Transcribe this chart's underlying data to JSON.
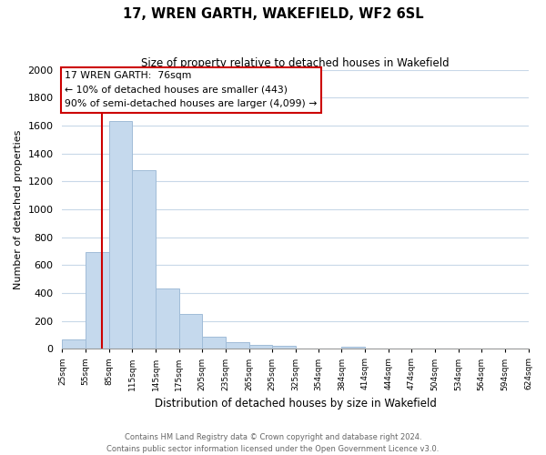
{
  "title": "17, WREN GARTH, WAKEFIELD, WF2 6SL",
  "subtitle": "Size of property relative to detached houses in Wakefield",
  "xlabel": "Distribution of detached houses by size in Wakefield",
  "ylabel": "Number of detached properties",
  "bar_color": "#c5d9ed",
  "bar_edge_color": "#a0bcd8",
  "property_line_color": "#cc0000",
  "property_value": 76,
  "annotation_line1": "17 WREN GARTH:  76sqm",
  "annotation_line2": "← 10% of detached houses are smaller (443)",
  "annotation_line3": "90% of semi-detached houses are larger (4,099) →",
  "annotation_box_color": "#ffffff",
  "annotation_box_edge_color": "#cc0000",
  "bins": [
    25,
    55,
    85,
    115,
    145,
    175,
    205,
    235,
    265,
    295,
    325,
    354,
    384,
    414,
    444,
    474,
    504,
    534,
    564,
    594,
    624
  ],
  "counts": [
    65,
    690,
    1630,
    1280,
    435,
    250,
    88,
    50,
    30,
    20,
    0,
    0,
    15,
    0,
    0,
    0,
    0,
    0,
    0,
    0
  ],
  "ylim": [
    0,
    2000
  ],
  "yticks": [
    0,
    200,
    400,
    600,
    800,
    1000,
    1200,
    1400,
    1600,
    1800,
    2000
  ],
  "background_color": "#ffffff",
  "grid_color": "#c8d8e8",
  "footer_line1": "Contains HM Land Registry data © Crown copyright and database right 2024.",
  "footer_line2": "Contains public sector information licensed under the Open Government Licence v3.0."
}
